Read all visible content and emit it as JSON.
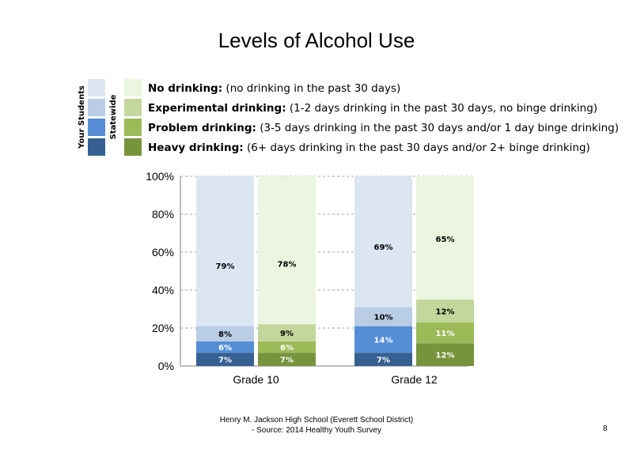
{
  "slide": {
    "title": "Levels of Alcohol Use",
    "footer_line1": "Henry M. Jackson High School (Everett School District)",
    "footer_line2": "- Source: 2014 Healthy Youth Survey",
    "page_number": "8"
  },
  "legend": {
    "your_students_label": "Your Students",
    "statewide_label": "Statewide",
    "items": [
      {
        "bold": "No drinking:",
        "desc": "(no drinking in the past 30 days)",
        "your_color": "#dce6f2",
        "state_color": "#ebf5df"
      },
      {
        "bold": "Experimental drinking:",
        "desc": "(1-2 days drinking in the past 30 days, no binge drinking)",
        "your_color": "#b9cde5",
        "state_color": "#c3d69b"
      },
      {
        "bold": "Problem drinking:",
        "desc": "(3-5 days drinking in the past 30 days and/or 1 day binge drinking)",
        "your_color": "#558ed5",
        "state_color": "#9bbb59"
      },
      {
        "bold": "Heavy drinking:",
        "desc": "(6+ days drinking in the past 30 days and/or 2+ binge drinking)",
        "your_color": "#376092",
        "state_color": "#77933c"
      }
    ]
  },
  "chart_data": {
    "type": "bar",
    "stacked": true,
    "title": "Levels of Alcohol Use",
    "categories": [
      "Grade 10",
      "Grade 12"
    ],
    "ylim": [
      0,
      100
    ],
    "yticks": [
      "0%",
      "20%",
      "40%",
      "60%",
      "80%",
      "100%"
    ],
    "grid": true,
    "groups": [
      {
        "category": "Grade 10",
        "bars": [
          {
            "source": "Your Students",
            "heavy": 7,
            "problem": 6,
            "experimental": 8,
            "none": 79,
            "labels": {
              "heavy": "7%",
              "problem": "6%",
              "experimental": "8%",
              "none": "79%"
            }
          },
          {
            "source": "Statewide",
            "heavy": 7,
            "problem": 6,
            "experimental": 9,
            "none": 78,
            "labels": {
              "heavy": "7%",
              "problem": "6%",
              "experimental": "9%",
              "none": "78%"
            }
          }
        ]
      },
      {
        "category": "Grade 12",
        "bars": [
          {
            "source": "Your Students",
            "heavy": 7,
            "problem": 14,
            "experimental": 10,
            "none": 69,
            "labels": {
              "heavy": "7%",
              "problem": "14%",
              "experimental": "10%",
              "none": "69%"
            }
          },
          {
            "source": "Statewide",
            "heavy": 12,
            "problem": 11,
            "experimental": 12,
            "none": 65,
            "labels": {
              "heavy": "12%",
              "problem": "11%",
              "experimental": "12%",
              "none": "65%"
            }
          }
        ]
      }
    ],
    "colors": {
      "Your Students": {
        "heavy": "#376092",
        "problem": "#558ed5",
        "experimental": "#b9cde5",
        "none": "#dce6f2"
      },
      "Statewide": {
        "heavy": "#77933c",
        "problem": "#9bbb59",
        "experimental": "#c3d69b",
        "none": "#ebf5df"
      }
    }
  }
}
